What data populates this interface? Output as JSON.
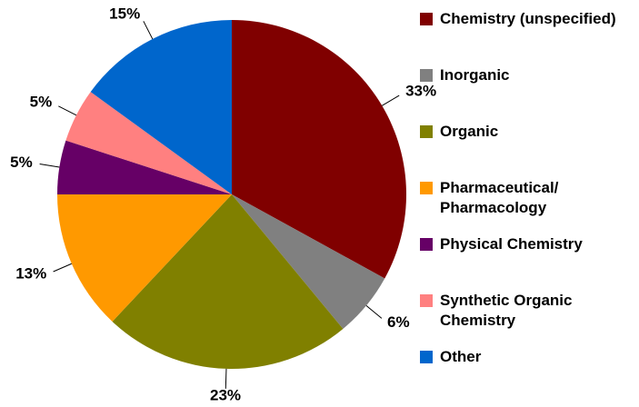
{
  "chart_data": {
    "type": "pie",
    "categories": [
      "Chemistry (unspecified)",
      "Inorganic",
      "Organic",
      "Pharmaceutical/ Pharmacology",
      "Physical Chemistry",
      "Synthetic Organic Chemistry",
      "Other"
    ],
    "values": [
      33,
      6,
      23,
      13,
      5,
      5,
      15
    ],
    "value_labels": [
      "33%",
      "6%",
      "23%",
      "13%",
      "5%",
      "5%",
      "15%"
    ],
    "colors": [
      "#800000",
      "#808080",
      "#808000",
      "#ff9900",
      "#660066",
      "#ff8080",
      "#0066cc"
    ],
    "legend": "right"
  }
}
